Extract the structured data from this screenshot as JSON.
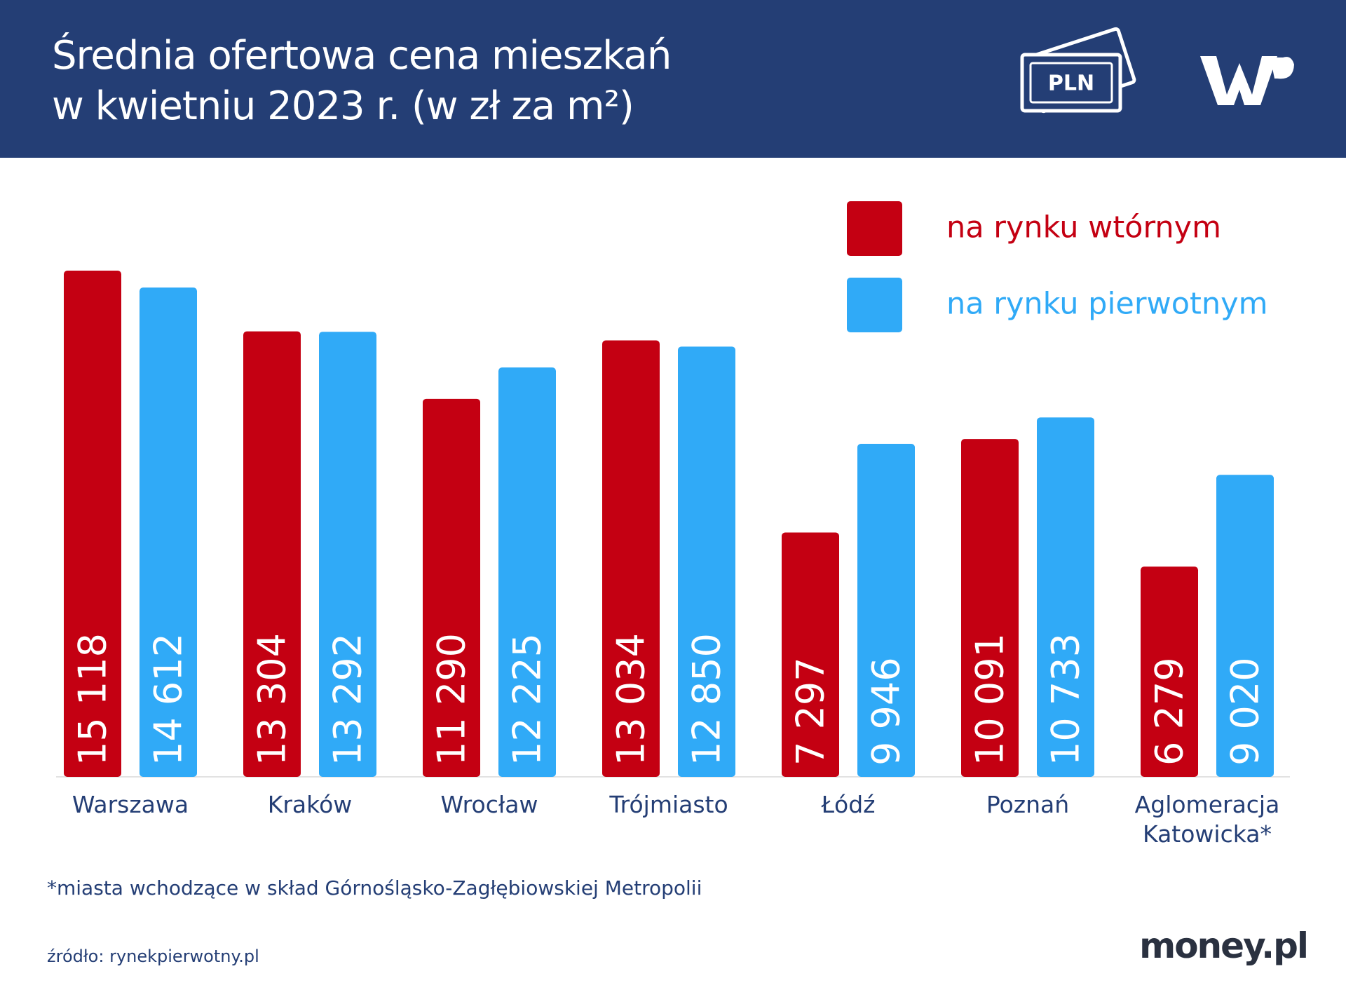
{
  "chart_data": {
    "type": "bar",
    "title": "Średnia ofertowa cena mieszkań\nw kwietniu 2023 r. (w zł za m²)",
    "icon_label": "PLN",
    "categories": [
      "Warszawa",
      "Kraków",
      "Wrocław",
      "Trójmiasto",
      "Łódź",
      "Poznań",
      "Aglomeracja\nKatowicka*"
    ],
    "series": [
      {
        "name": "na rynku wtórnym",
        "color": "#c40012",
        "values": [
          15118,
          13304,
          11290,
          13034,
          7297,
          10091,
          6279
        ],
        "value_labels": [
          "15 118",
          "13 304",
          "11 290",
          "13 034",
          "7 297",
          "10 091",
          "6 279"
        ]
      },
      {
        "name": "na rynku pierwotnym",
        "color": "#30aaf7",
        "values": [
          14612,
          13292,
          12225,
          12850,
          9946,
          10733,
          9020
        ],
        "value_labels": [
          "14 612",
          "13 292",
          "12 225",
          "12 850",
          "9 946",
          "10 733",
          "9 020"
        ]
      }
    ],
    "footnote": "*miasta wchodzące w skład Górnośląsko-Zagłębiowskiej Metropolii",
    "source": "źródło: rynekpierwotny.pl",
    "brand": "money.pl"
  }
}
